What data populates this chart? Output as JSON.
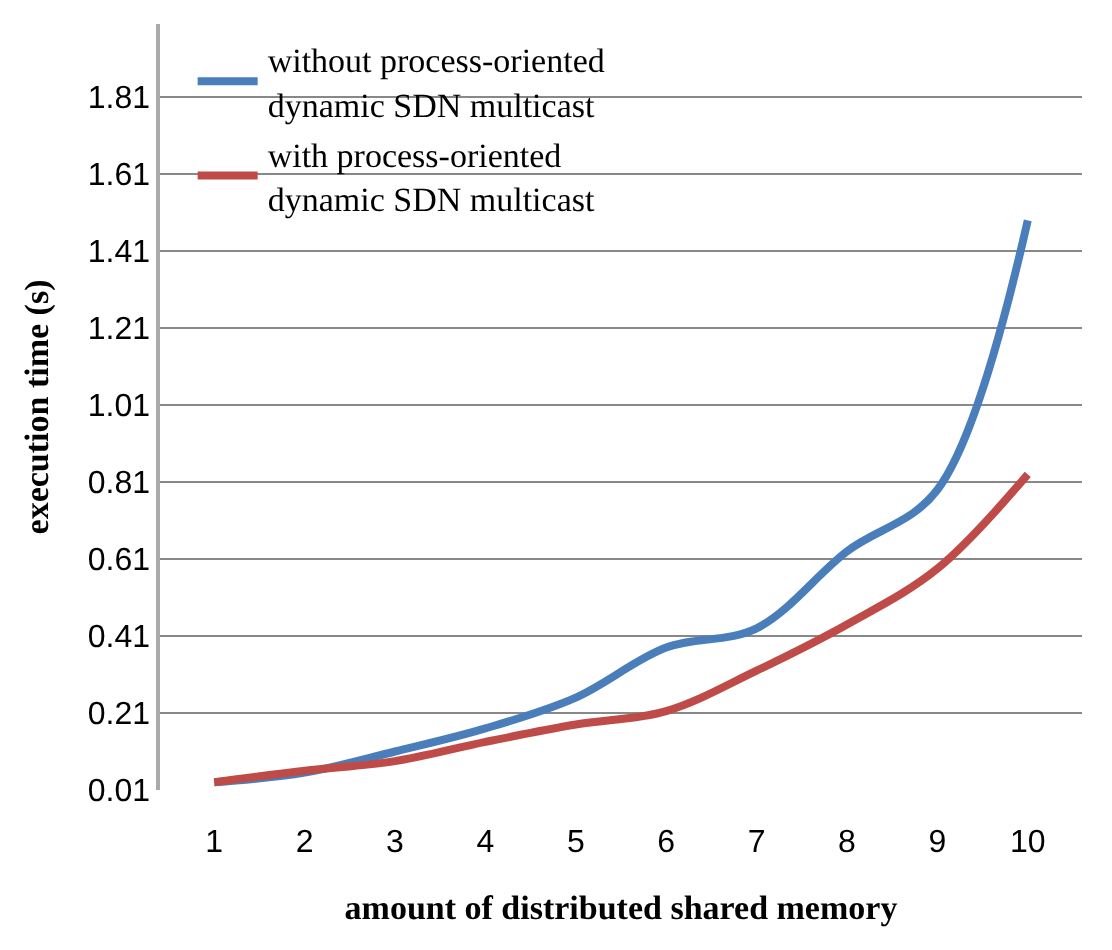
{
  "chart_data": {
    "type": "line",
    "xlabel": "amount of distributed shared memory",
    "ylabel": "execution time (s)",
    "categories": [
      "1",
      "2",
      "3",
      "4",
      "5",
      "6",
      "7",
      "8",
      "9",
      "10"
    ],
    "series": [
      {
        "name": "without process-oriented dynamic SDN multicast",
        "color": "#4a7ebb",
        "values": [
          0.03,
          0.055,
          0.11,
          0.17,
          0.25,
          0.38,
          0.43,
          0.63,
          0.79,
          1.49
        ]
      },
      {
        "name": "with process-oriented dynamic SDN multicast",
        "color": "#be4b48",
        "values": [
          0.03,
          0.06,
          0.085,
          0.135,
          0.18,
          0.215,
          0.32,
          0.44,
          0.585,
          0.83
        ]
      }
    ],
    "ylim": [
      0.01,
      2.0
    ],
    "yticks": [
      0.01,
      0.21,
      0.41,
      0.61,
      0.81,
      1.01,
      1.21,
      1.41,
      1.61,
      1.81
    ],
    "grid": "y",
    "legend": "top left",
    "marker": "none",
    "line_style": "solid"
  }
}
